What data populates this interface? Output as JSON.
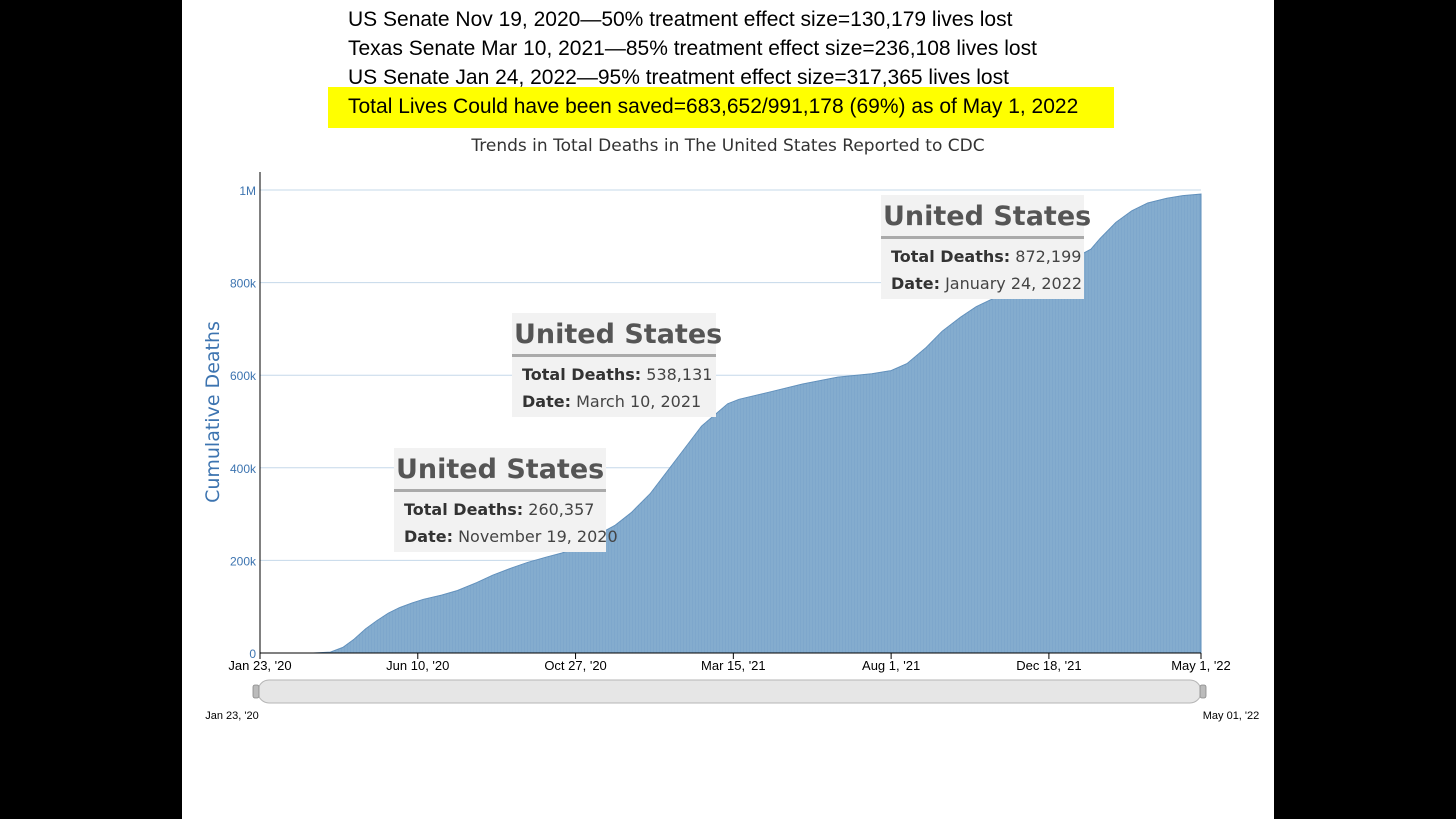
{
  "annotations": {
    "line1": "US Senate Nov 19, 2020—50% treatment effect size=130,179 lives lost",
    "line2": "Texas Senate Mar 10, 2021—85% treatment effect size=236,108 lives lost",
    "line3": "US Senate Jan 24, 2022—95% treatment effect size=317,365 lives lost",
    "line4": "Total Lives Could have been saved=683,652/991,178 (69%) as of May 1, 2022",
    "highlight_color": "#ffff00"
  },
  "tooltips": [
    {
      "title": "United States",
      "deaths_label": "Total Deaths:",
      "deaths_value": "260,357",
      "date_label": "Date:",
      "date_value": "November 19, 2020"
    },
    {
      "title": "United States",
      "deaths_label": "Total Deaths:",
      "deaths_value": "538,131",
      "date_label": "Date:",
      "date_value": "March 10, 2021"
    },
    {
      "title": "United States",
      "deaths_label": "Total Deaths:",
      "deaths_value": "872,199",
      "date_label": "Date:",
      "date_value": "January 24, 2022"
    }
  ],
  "navigator": {
    "start_label": "Jan 23, '20",
    "end_label": "May 01, '22"
  },
  "chart_data": {
    "type": "bar",
    "title": "Trends in Total Deaths in The United States Reported to CDC",
    "xlabel": "",
    "ylabel": "Cumulative Deaths",
    "ylim": [
      0,
      1000000
    ],
    "yticks": [
      {
        "v": 0,
        "l": "0"
      },
      {
        "v": 200000,
        "l": "200k"
      },
      {
        "v": 400000,
        "l": "400k"
      },
      {
        "v": 600000,
        "l": "600k"
      },
      {
        "v": 800000,
        "l": "800k"
      },
      {
        "v": 1000000,
        "l": "1M"
      }
    ],
    "x_range": [
      "2020-01-23",
      "2022-05-01"
    ],
    "xticks": [
      {
        "date": "2020-01-23",
        "l": "Jan 23, '20"
      },
      {
        "date": "2020-06-10",
        "l": "Jun 10, '20"
      },
      {
        "date": "2020-10-27",
        "l": "Oct 27, '20"
      },
      {
        "date": "2021-03-15",
        "l": "Mar 15, '21"
      },
      {
        "date": "2021-08-01",
        "l": "Aug 1, '21"
      },
      {
        "date": "2021-12-18",
        "l": "Dec 18, '21"
      },
      {
        "date": "2022-05-01",
        "l": "May 1, '22"
      }
    ],
    "series": [
      {
        "points": [
          [
            "2020-01-23",
            0
          ],
          [
            "2020-03-10",
            0
          ],
          [
            "2020-03-25",
            2000
          ],
          [
            "2020-04-05",
            12000
          ],
          [
            "2020-04-15",
            30000
          ],
          [
            "2020-04-25",
            52000
          ],
          [
            "2020-05-05",
            70000
          ],
          [
            "2020-05-15",
            86000
          ],
          [
            "2020-05-25",
            98000
          ],
          [
            "2020-06-05",
            108000
          ],
          [
            "2020-06-15",
            116000
          ],
          [
            "2020-07-01",
            125000
          ],
          [
            "2020-07-15",
            135000
          ],
          [
            "2020-08-01",
            152000
          ],
          [
            "2020-08-15",
            168000
          ],
          [
            "2020-09-01",
            184000
          ],
          [
            "2020-09-15",
            196000
          ],
          [
            "2020-10-01",
            207000
          ],
          [
            "2020-10-15",
            216000
          ],
          [
            "2020-11-01",
            230000
          ],
          [
            "2020-11-19",
            260357
          ],
          [
            "2020-12-01",
            276000
          ],
          [
            "2020-12-15",
            303000
          ],
          [
            "2021-01-01",
            345000
          ],
          [
            "2021-01-15",
            390000
          ],
          [
            "2021-02-01",
            445000
          ],
          [
            "2021-02-15",
            490000
          ],
          [
            "2021-03-10",
            538131
          ],
          [
            "2021-03-20",
            548000
          ],
          [
            "2021-04-15",
            563000
          ],
          [
            "2021-05-15",
            581000
          ],
          [
            "2021-06-15",
            596000
          ],
          [
            "2021-07-15",
            603000
          ],
          [
            "2021-08-01",
            610000
          ],
          [
            "2021-08-15",
            625000
          ],
          [
            "2021-09-01",
            660000
          ],
          [
            "2021-09-15",
            695000
          ],
          [
            "2021-10-01",
            725000
          ],
          [
            "2021-10-15",
            748000
          ],
          [
            "2021-11-01",
            768000
          ],
          [
            "2021-11-15",
            782000
          ],
          [
            "2021-12-01",
            800000
          ],
          [
            "2021-12-15",
            820000
          ],
          [
            "2022-01-01",
            842000
          ],
          [
            "2022-01-24",
            872199
          ],
          [
            "2022-02-01",
            895000
          ],
          [
            "2022-02-15",
            930000
          ],
          [
            "2022-03-01",
            955000
          ],
          [
            "2022-03-15",
            972000
          ],
          [
            "2022-04-01",
            982000
          ],
          [
            "2022-04-15",
            988000
          ],
          [
            "2022-05-01",
            991178
          ]
        ]
      }
    ],
    "colors": {
      "bar": "#7ea7cc",
      "bar_stroke": "#5f8fbb",
      "grid": "#c5d8ea",
      "axis_text": "#3d74b0",
      "ylabel": "#3d74b0"
    },
    "grid": true
  }
}
